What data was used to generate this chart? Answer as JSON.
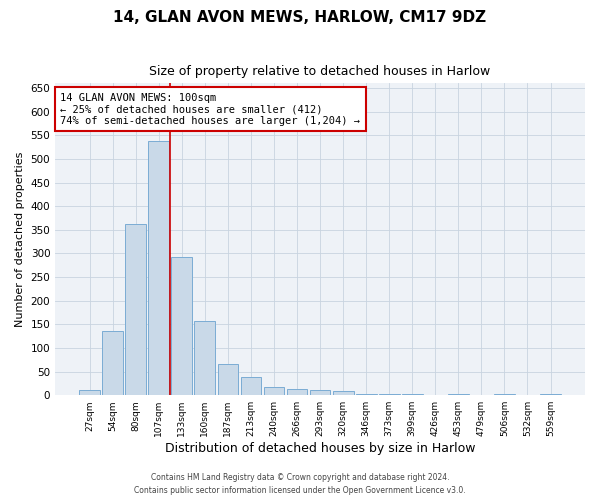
{
  "title": "14, GLAN AVON MEWS, HARLOW, CM17 9DZ",
  "subtitle": "Size of property relative to detached houses in Harlow",
  "xlabel": "Distribution of detached houses by size in Harlow",
  "ylabel": "Number of detached properties",
  "categories": [
    "27sqm",
    "54sqm",
    "80sqm",
    "107sqm",
    "133sqm",
    "160sqm",
    "187sqm",
    "213sqm",
    "240sqm",
    "266sqm",
    "293sqm",
    "320sqm",
    "346sqm",
    "373sqm",
    "399sqm",
    "426sqm",
    "453sqm",
    "479sqm",
    "506sqm",
    "532sqm",
    "559sqm"
  ],
  "values": [
    10,
    136,
    362,
    538,
    293,
    158,
    65,
    38,
    17,
    14,
    10,
    8,
    3,
    2,
    2,
    0,
    3,
    0,
    2,
    0,
    3
  ],
  "bar_color": "#c9d9e8",
  "bar_edge_color": "#7bacd4",
  "vline_x": 3.5,
  "vline_color": "#cc0000",
  "annotation_text": "14 GLAN AVON MEWS: 100sqm\n← 25% of detached houses are smaller (412)\n74% of semi-detached houses are larger (1,204) →",
  "annotation_box_color": "#ffffff",
  "annotation_box_edge": "#cc0000",
  "ylim": [
    0,
    660
  ],
  "yticks": [
    0,
    50,
    100,
    150,
    200,
    250,
    300,
    350,
    400,
    450,
    500,
    550,
    600,
    650
  ],
  "background_color": "#eef2f7",
  "footer_line1": "Contains HM Land Registry data © Crown copyright and database right 2024.",
  "footer_line2": "Contains public sector information licensed under the Open Government Licence v3.0.",
  "title_fontsize": 11,
  "subtitle_fontsize": 9,
  "xlabel_fontsize": 9,
  "ylabel_fontsize": 8,
  "annot_fontsize": 7.5
}
